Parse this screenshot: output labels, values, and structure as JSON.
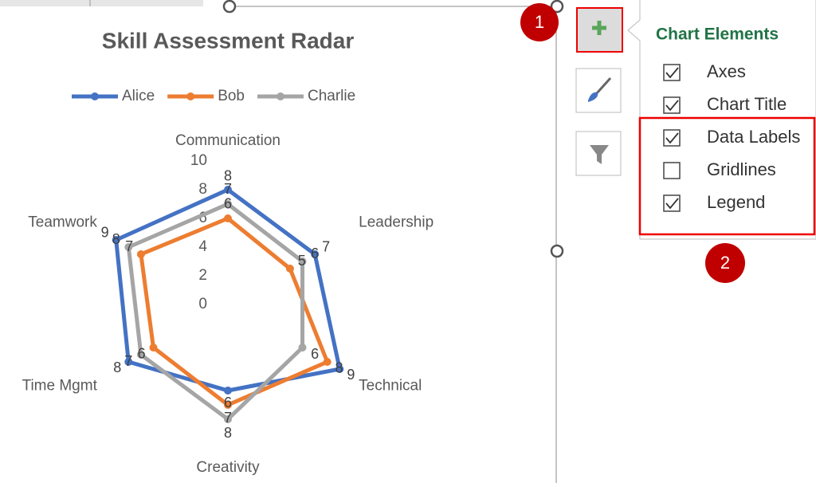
{
  "chart_data": {
    "type": "radar",
    "title": "Skill Assessment Radar",
    "categories": [
      "Communication",
      "Leadership",
      "Technical",
      "Creativity",
      "Time Mgmt",
      "Teamwork"
    ],
    "series": [
      {
        "name": "Alice",
        "color": "#4472c4",
        "values": [
          8,
          7,
          9,
          6,
          8,
          9
        ]
      },
      {
        "name": "Bob",
        "color": "#ed7d31",
        "values": [
          6,
          5,
          8,
          7,
          6,
          7
        ]
      },
      {
        "name": "Charlie",
        "color": "#a5a5a5",
        "values": [
          7,
          6,
          6,
          8,
          7,
          8
        ]
      }
    ],
    "ylim": [
      0,
      10
    ],
    "yticks": [
      0,
      2,
      4,
      6,
      8,
      10
    ],
    "grid": false,
    "legend": "top",
    "data_labels": true
  },
  "ui": {
    "panel_title": "Chart Elements",
    "elements": [
      {
        "label": "Axes",
        "checked": true
      },
      {
        "label": "Chart Title",
        "checked": true
      },
      {
        "label": "Data Labels",
        "checked": true
      },
      {
        "label": "Gridlines",
        "checked": false
      },
      {
        "label": "Legend",
        "checked": true
      }
    ],
    "callouts": [
      "1",
      "2"
    ]
  }
}
